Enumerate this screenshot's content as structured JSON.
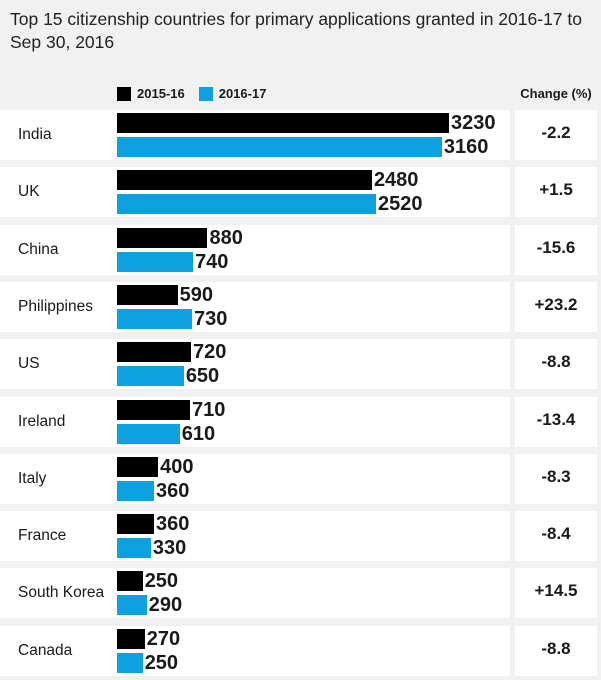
{
  "chart_data": {
    "type": "bar",
    "orientation": "horizontal",
    "title": "Top 15 citizenship countries for primary applications granted in 2016-17 to Sep 30, 2016",
    "categories": [
      "India",
      "UK",
      "China",
      "Philippines",
      "US",
      "Ireland",
      "Italy",
      "France",
      "South Korea",
      "Canada"
    ],
    "series": [
      {
        "name": "2015-16",
        "color": "#000000",
        "values": [
          3230,
          2480,
          880,
          590,
          720,
          710,
          400,
          360,
          250,
          270
        ]
      },
      {
        "name": "2016-17",
        "color": "#0ea1e0",
        "values": [
          3160,
          2520,
          740,
          730,
          650,
          610,
          360,
          330,
          290,
          250
        ]
      }
    ],
    "change_header": "Change (%)",
    "change": [
      "-2.2",
      "+1.5",
      "-15.6",
      "+23.2",
      "-8.8",
      "-13.4",
      "-8.3",
      "-8.4",
      "+14.5",
      "-8.8"
    ],
    "legend_position": "top",
    "grid": false,
    "data_labels": true
  }
}
